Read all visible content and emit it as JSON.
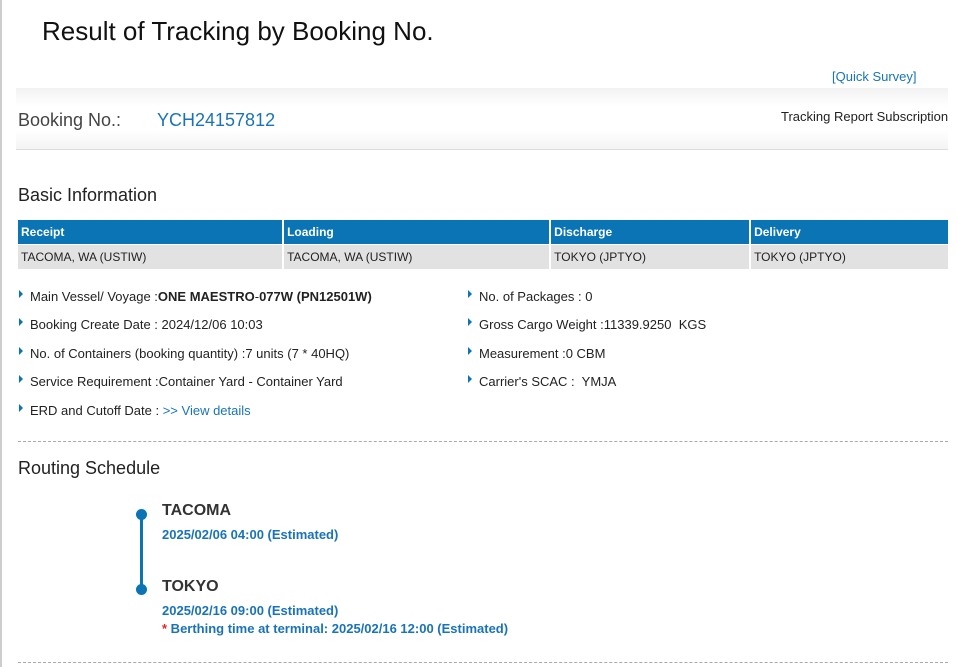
{
  "title": "Result of Tracking by Booking No.",
  "quick_survey": "[Quick Survey]",
  "booking": {
    "label": "Booking No.:",
    "value": "YCH24157812",
    "subscription": "Tracking Report Subscription"
  },
  "basic": {
    "heading": "Basic Information",
    "columns": [
      "Receipt",
      "Loading",
      "Discharge",
      "Delivery"
    ],
    "values": [
      "TACOMA, WA (USTIW)",
      "TACOMA, WA (USTIW)",
      "TOKYO (JPTYO)",
      "TOKYO (JPTYO)"
    ],
    "left": [
      {
        "label": "Main Vessel/ Voyage : ",
        "vessel": "ONE MAESTRO",
        "sep": " - ",
        "voyage": "077W (PN12501W)"
      },
      {
        "label": "Booking Create Date : 2024/12/06 10:03"
      },
      {
        "label": "No. of Containers (booking quantity) :7 units (7 * 40HQ)"
      },
      {
        "label": "Service Requirement :Container Yard - Container Yard"
      },
      {
        "label": "ERD and Cutoff Date : ",
        "link": ">> View details"
      }
    ],
    "right": [
      "No. of Packages : 0",
      "Gross Cargo Weight :11339.9250  KGS",
      "Measurement :0 CBM",
      "Carrier's SCAC :  YMJA"
    ]
  },
  "routing": {
    "heading": "Routing Schedule",
    "stops": [
      {
        "port": "TACOMA",
        "time": "2025/02/06 04:00 (Estimated)"
      },
      {
        "port": "TOKYO",
        "time": "2025/02/16 09:00 (Estimated)",
        "note_mark": "*",
        "note": " Berthing time at terminal: 2025/02/16 12:00 (Estimated)"
      }
    ]
  },
  "colors": {
    "accent": "#0a74b4",
    "link": "#1a73b8",
    "row_bg": "#e2e2e2"
  }
}
